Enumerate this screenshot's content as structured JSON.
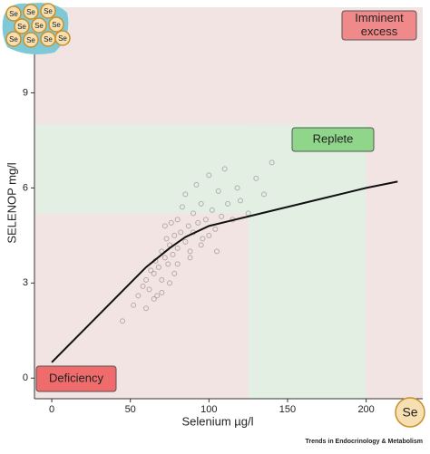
{
  "chart_data": {
    "type": "scatter",
    "xlabel": "Selenium µg/l",
    "ylabel": "SELENOP mg/l",
    "xlim": [
      -11,
      236
    ],
    "ylim": [
      -0.65,
      11.7
    ],
    "xticks": [
      0,
      50,
      100,
      150,
      200
    ],
    "yticks": [
      0,
      3,
      6,
      9
    ],
    "background": "#f3e4e4",
    "regions": [
      {
        "x": [
          -11,
          200
        ],
        "y": [
          5.2,
          8
        ],
        "color": "#e4efe3"
      },
      {
        "x": [
          125,
          200
        ],
        "y": [
          -0.65,
          8
        ],
        "color": "#e4efe3"
      }
    ],
    "scatter": {
      "color": "#6e6468",
      "x": [
        45,
        52,
        55,
        58,
        60,
        62,
        63,
        65,
        66,
        67,
        68,
        70,
        70,
        72,
        73,
        74,
        75,
        76,
        77,
        78,
        78,
        80,
        80,
        82,
        83,
        85,
        85,
        87,
        88,
        90,
        90,
        92,
        93,
        95,
        96,
        98,
        100,
        102,
        104,
        106,
        108,
        110,
        112,
        115,
        118,
        120,
        125,
        130,
        135,
        140,
        60,
        65,
        70,
        75,
        80,
        88,
        95,
        100,
        105,
        72
      ],
      "y": [
        1.8,
        2.3,
        2.6,
        2.9,
        3.1,
        2.8,
        3.4,
        3.3,
        3.7,
        2.6,
        3.5,
        4.0,
        3.1,
        3.8,
        4.4,
        3.6,
        4.2,
        4.9,
        3.9,
        4.5,
        3.3,
        5.0,
        4.1,
        4.6,
        5.4,
        4.3,
        5.8,
        4.8,
        4.0,
        5.2,
        4.6,
        6.1,
        4.9,
        5.5,
        4.4,
        5.0,
        6.4,
        5.3,
        4.7,
        5.9,
        5.1,
        6.6,
        5.5,
        5.0,
        6.0,
        5.6,
        5.2,
        6.3,
        5.8,
        6.8,
        2.2,
        2.5,
        2.7,
        3.0,
        3.6,
        3.8,
        4.2,
        4.5,
        4.0,
        4.8
      ]
    },
    "fit": {
      "color": "#111111",
      "x": [
        0,
        20,
        40,
        60,
        75,
        85,
        100,
        125,
        150,
        175,
        200,
        220
      ],
      "values": [
        0.5,
        1.5,
        2.5,
        3.5,
        4.1,
        4.45,
        4.8,
        5.1,
        5.4,
        5.7,
        6.0,
        6.2
      ]
    },
    "annotations": [
      {
        "text": "Imminent excess",
        "color": "#f08a8a"
      },
      {
        "text": "Replete",
        "color": "#8fd68a"
      },
      {
        "text": "Deficiency",
        "color": "#f06c6c"
      }
    ],
    "icon_label": "Se",
    "source": "Trends in Endocrinology & Metabolism"
  }
}
